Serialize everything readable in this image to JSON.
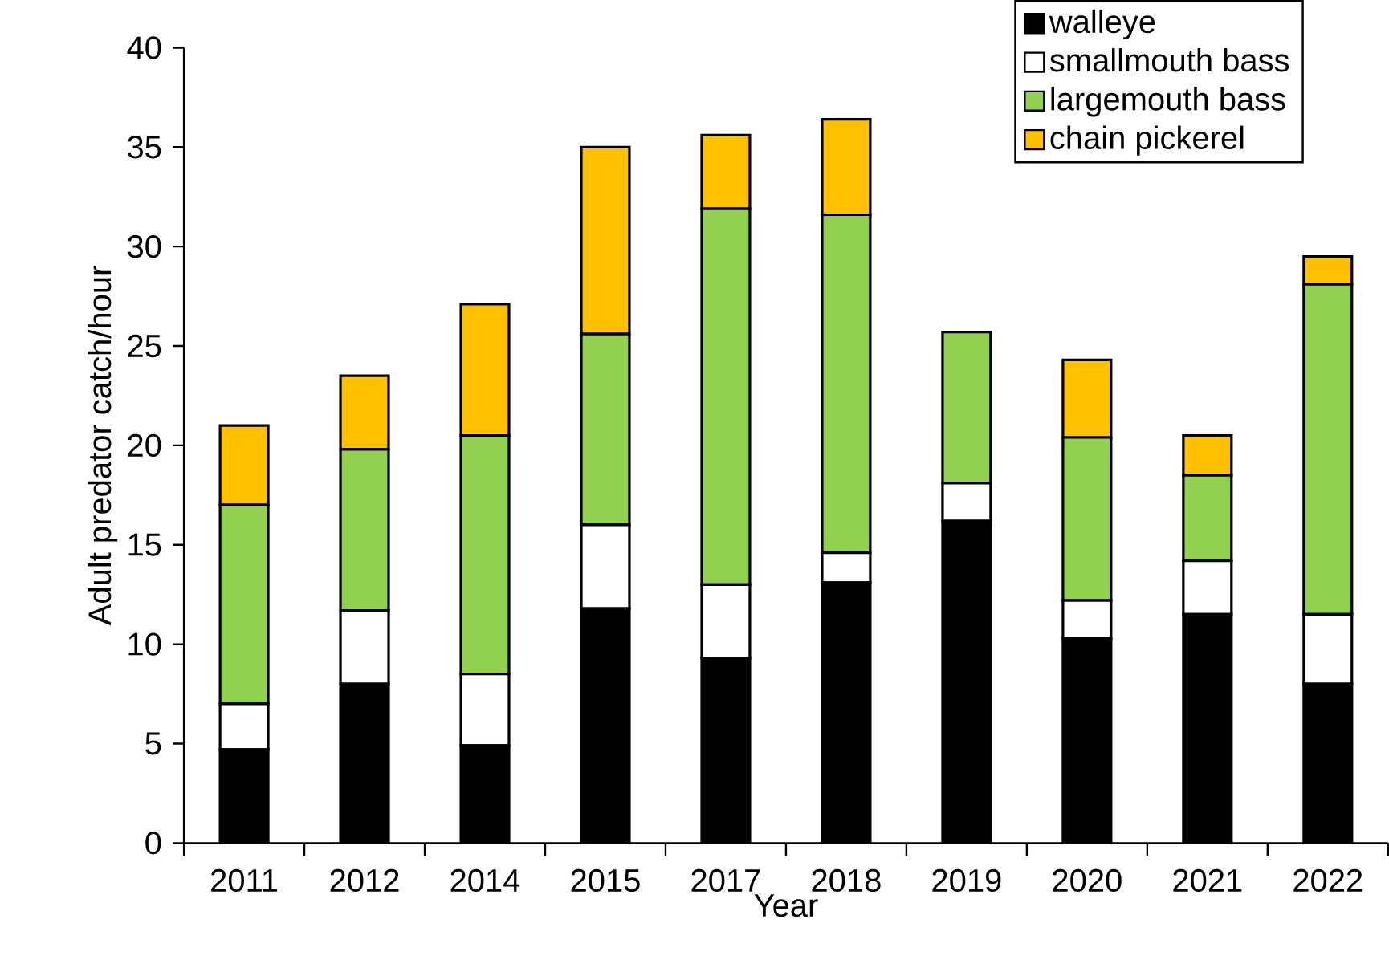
{
  "chart_data": {
    "type": "bar",
    "stacked": true,
    "xlabel": "Year",
    "ylabel": "Adult predator catch/hour",
    "categories": [
      "2011",
      "2012",
      "2014",
      "2015",
      "2017",
      "2018",
      "2019",
      "2020",
      "2021",
      "2022"
    ],
    "series": [
      {
        "name": "walleye",
        "color": "#000000",
        "values": [
          4.7,
          8.0,
          4.9,
          11.8,
          9.3,
          13.1,
          16.2,
          10.3,
          11.5,
          8.0
        ]
      },
      {
        "name": "smallmouth bass",
        "color": "#ffffff",
        "values": [
          2.3,
          3.7,
          3.6,
          4.2,
          3.7,
          1.5,
          1.9,
          1.9,
          2.7,
          3.5
        ]
      },
      {
        "name": "largemouth bass",
        "color": "#92d050",
        "values": [
          10.0,
          8.1,
          12.0,
          9.6,
          18.9,
          17.0,
          7.6,
          8.2,
          4.3,
          16.6
        ]
      },
      {
        "name": "chain pickerel",
        "color": "#ffc000",
        "values": [
          4.0,
          3.7,
          6.6,
          9.4,
          3.7,
          4.8,
          0,
          3.9,
          2.0,
          1.4
        ]
      }
    ],
    "ylim": [
      0,
      40
    ],
    "yticks": [
      0,
      5,
      10,
      15,
      20,
      25,
      30,
      35,
      40
    ],
    "legend": "top right",
    "grid": false
  }
}
